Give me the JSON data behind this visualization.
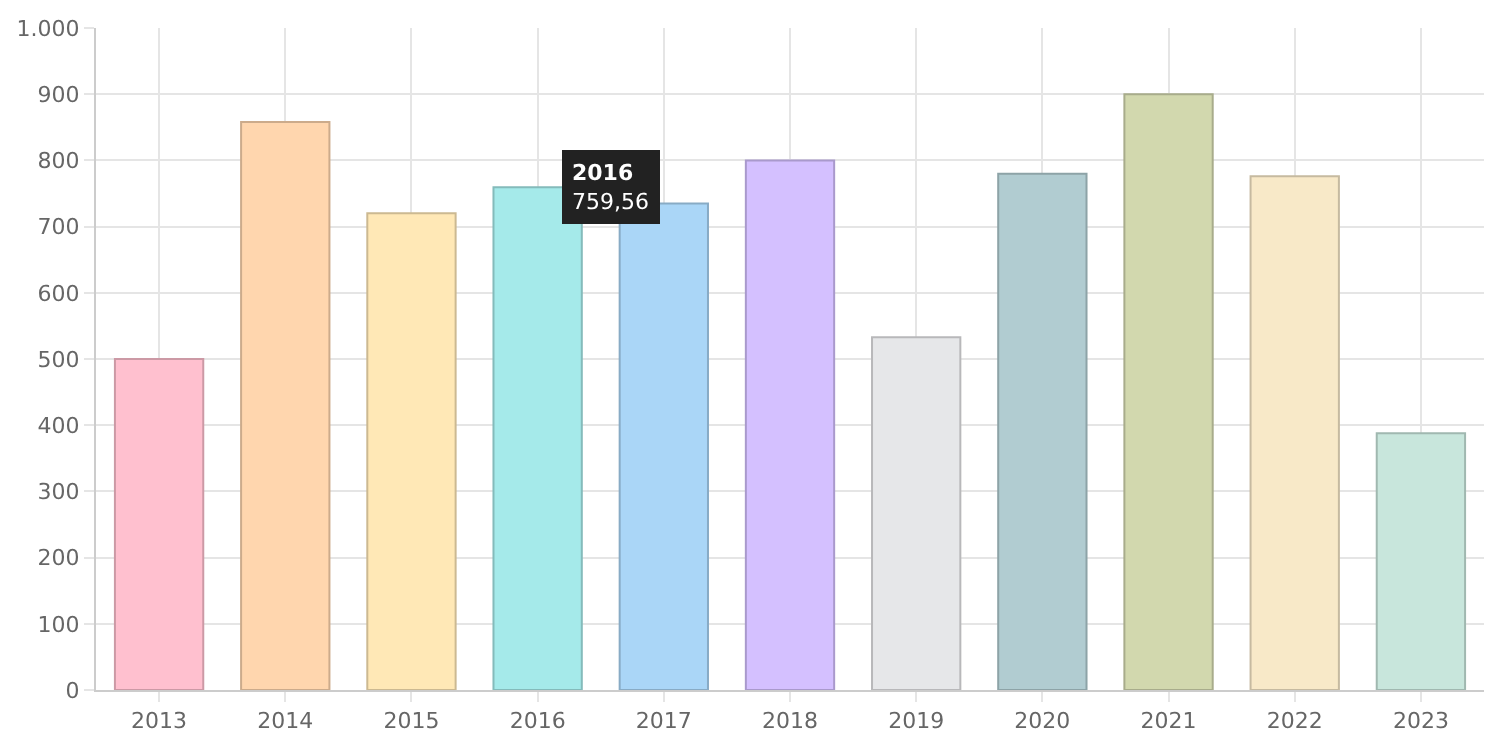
{
  "chart_data": {
    "type": "bar",
    "categories": [
      "2013",
      "2014",
      "2015",
      "2016",
      "2017",
      "2018",
      "2019",
      "2020",
      "2021",
      "2022",
      "2023"
    ],
    "values": [
      500,
      858,
      720,
      759.56,
      735,
      800,
      533,
      780,
      900,
      776,
      388
    ],
    "colors": [
      "#ffc0cf",
      "#ffd6ae",
      "#ffe8b6",
      "#a5eaea",
      "#aad6f7",
      "#d4c0ff",
      "#e6e7e9",
      "#b1ccd1",
      "#d2d8ae",
      "#f8e9c8",
      "#c8e6dc"
    ],
    "ylim": [
      0,
      1000
    ],
    "yticks": [
      0,
      100,
      200,
      300,
      400,
      500,
      600,
      700,
      800,
      900,
      {
        "value": 1000,
        "label": "1.000"
      }
    ],
    "grid": true,
    "annotations": [
      {
        "text": "2016\n759,56",
        "x": "2016",
        "y": 759.56
      }
    ]
  }
}
